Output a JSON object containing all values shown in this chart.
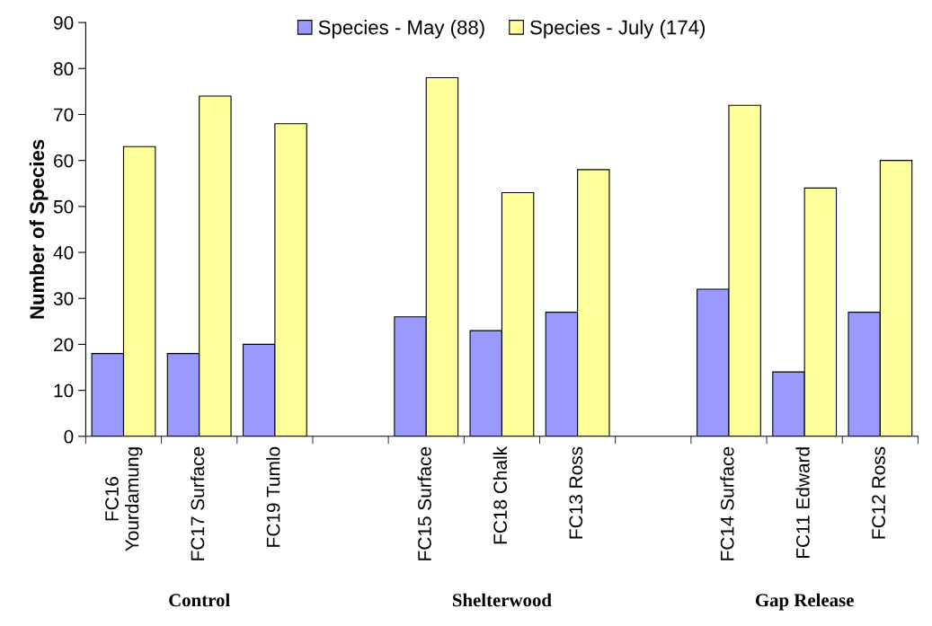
{
  "chart_data": {
    "type": "bar",
    "categories": [
      "FC16\nYourdamung",
      "FC17 Surface",
      "FC19 Tumlo",
      null,
      "FC15 Surface",
      "FC18 Chalk",
      "FC13 Ross",
      null,
      "FC14 Surface",
      "FC11 Edward",
      "FC12 Ross"
    ],
    "series": [
      {
        "name": "Species - May (88)",
        "color": "#9999ff",
        "values": [
          18,
          18,
          20,
          null,
          26,
          23,
          27,
          null,
          32,
          14,
          27
        ]
      },
      {
        "name": "Species - July (174)",
        "color": "#ffff99",
        "values": [
          63,
          74,
          68,
          null,
          78,
          53,
          58,
          null,
          72,
          54,
          60
        ]
      }
    ],
    "ylabel": "Number of Species",
    "ylim": [
      0,
      90
    ],
    "yticks": [
      0,
      10,
      20,
      30,
      40,
      50,
      60,
      70,
      80,
      90
    ],
    "annotations": [
      "Control",
      "Shelterwood",
      "Gap Release"
    ],
    "legend": "top",
    "grid": false
  }
}
